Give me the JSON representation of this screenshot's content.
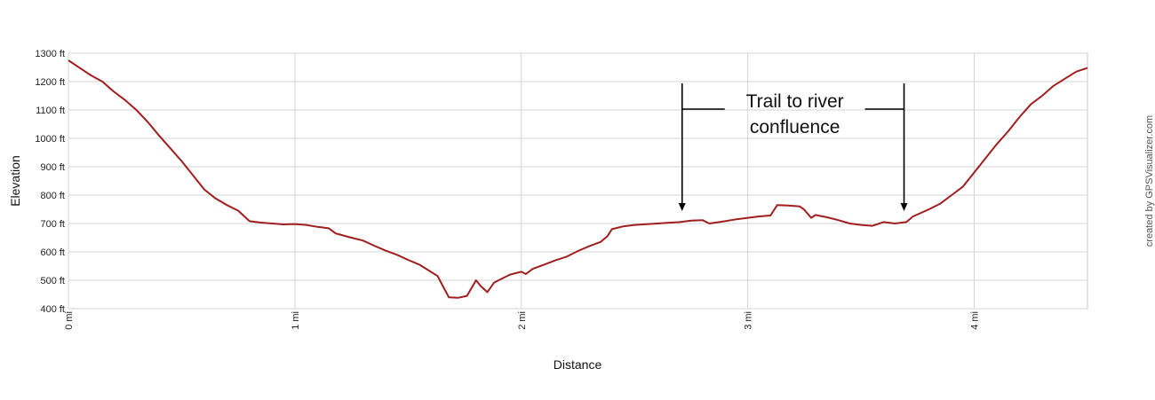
{
  "chart_data": {
    "type": "line",
    "xlabel": "Distance",
    "ylabel": "Elevation",
    "xlim": [
      0,
      4.5
    ],
    "ylim": [
      400,
      1300
    ],
    "x_ticks": [
      0,
      1,
      2,
      3,
      4
    ],
    "x_tick_labels": [
      "0 mi",
      "1 mi",
      "2 mi",
      "3 mi",
      "4 mi"
    ],
    "y_ticks": [
      400,
      500,
      600,
      700,
      800,
      900,
      1000,
      1100,
      1200,
      1300
    ],
    "y_tick_labels": [
      "400 ft",
      "500 ft",
      "600 ft",
      "700 ft",
      "800 ft",
      "900 ft",
      "1000 ft",
      "1100 ft",
      "1200 ft",
      "1300 ft"
    ],
    "grid": true,
    "line_color": "#a01e1e",
    "credit": "created by GPSVisualizer.com",
    "annotation": {
      "text_lines": [
        "Trail to river",
        "confluence"
      ],
      "x_start": 2.71,
      "x_end": 3.69
    },
    "series": [
      {
        "points": [
          [
            0.0,
            1275
          ],
          [
            0.05,
            1248
          ],
          [
            0.1,
            1222
          ],
          [
            0.15,
            1200
          ],
          [
            0.2,
            1165
          ],
          [
            0.25,
            1135
          ],
          [
            0.3,
            1100
          ],
          [
            0.35,
            1058
          ],
          [
            0.4,
            1010
          ],
          [
            0.45,
            965
          ],
          [
            0.5,
            920
          ],
          [
            0.55,
            870
          ],
          [
            0.6,
            820
          ],
          [
            0.65,
            788
          ],
          [
            0.7,
            765
          ],
          [
            0.75,
            745
          ],
          [
            0.8,
            708
          ],
          [
            0.85,
            703
          ],
          [
            0.9,
            700
          ],
          [
            0.95,
            697
          ],
          [
            1.0,
            698
          ],
          [
            1.05,
            695
          ],
          [
            1.1,
            688
          ],
          [
            1.15,
            683
          ],
          [
            1.18,
            665
          ],
          [
            1.25,
            650
          ],
          [
            1.3,
            640
          ],
          [
            1.35,
            622
          ],
          [
            1.4,
            605
          ],
          [
            1.45,
            590
          ],
          [
            1.5,
            572
          ],
          [
            1.55,
            555
          ],
          [
            1.6,
            530
          ],
          [
            1.63,
            515
          ],
          [
            1.66,
            470
          ],
          [
            1.68,
            440
          ],
          [
            1.72,
            438
          ],
          [
            1.76,
            445
          ],
          [
            1.8,
            500
          ],
          [
            1.82,
            480
          ],
          [
            1.85,
            458
          ],
          [
            1.88,
            492
          ],
          [
            1.9,
            500
          ],
          [
            1.95,
            520
          ],
          [
            2.0,
            530
          ],
          [
            2.02,
            522
          ],
          [
            2.05,
            540
          ],
          [
            2.1,
            555
          ],
          [
            2.15,
            570
          ],
          [
            2.2,
            583
          ],
          [
            2.25,
            603
          ],
          [
            2.3,
            620
          ],
          [
            2.35,
            635
          ],
          [
            2.38,
            655
          ],
          [
            2.4,
            680
          ],
          [
            2.45,
            690
          ],
          [
            2.5,
            695
          ],
          [
            2.6,
            700
          ],
          [
            2.7,
            705
          ],
          [
            2.75,
            710
          ],
          [
            2.8,
            712
          ],
          [
            2.83,
            700
          ],
          [
            2.9,
            708
          ],
          [
            2.95,
            715
          ],
          [
            3.0,
            720
          ],
          [
            3.05,
            725
          ],
          [
            3.1,
            728
          ],
          [
            3.13,
            765
          ],
          [
            3.18,
            763
          ],
          [
            3.23,
            760
          ],
          [
            3.25,
            748
          ],
          [
            3.28,
            720
          ],
          [
            3.3,
            730
          ],
          [
            3.35,
            722
          ],
          [
            3.4,
            712
          ],
          [
            3.45,
            700
          ],
          [
            3.5,
            695
          ],
          [
            3.55,
            692
          ],
          [
            3.6,
            705
          ],
          [
            3.65,
            700
          ],
          [
            3.7,
            705
          ],
          [
            3.73,
            725
          ],
          [
            3.8,
            750
          ],
          [
            3.85,
            770
          ],
          [
            3.9,
            800
          ],
          [
            3.95,
            830
          ],
          [
            4.0,
            880
          ],
          [
            4.05,
            930
          ],
          [
            4.1,
            980
          ],
          [
            4.15,
            1025
          ],
          [
            4.2,
            1075
          ],
          [
            4.25,
            1120
          ],
          [
            4.3,
            1150
          ],
          [
            4.35,
            1185
          ],
          [
            4.4,
            1210
          ],
          [
            4.45,
            1235
          ],
          [
            4.5,
            1248
          ]
        ]
      }
    ]
  }
}
